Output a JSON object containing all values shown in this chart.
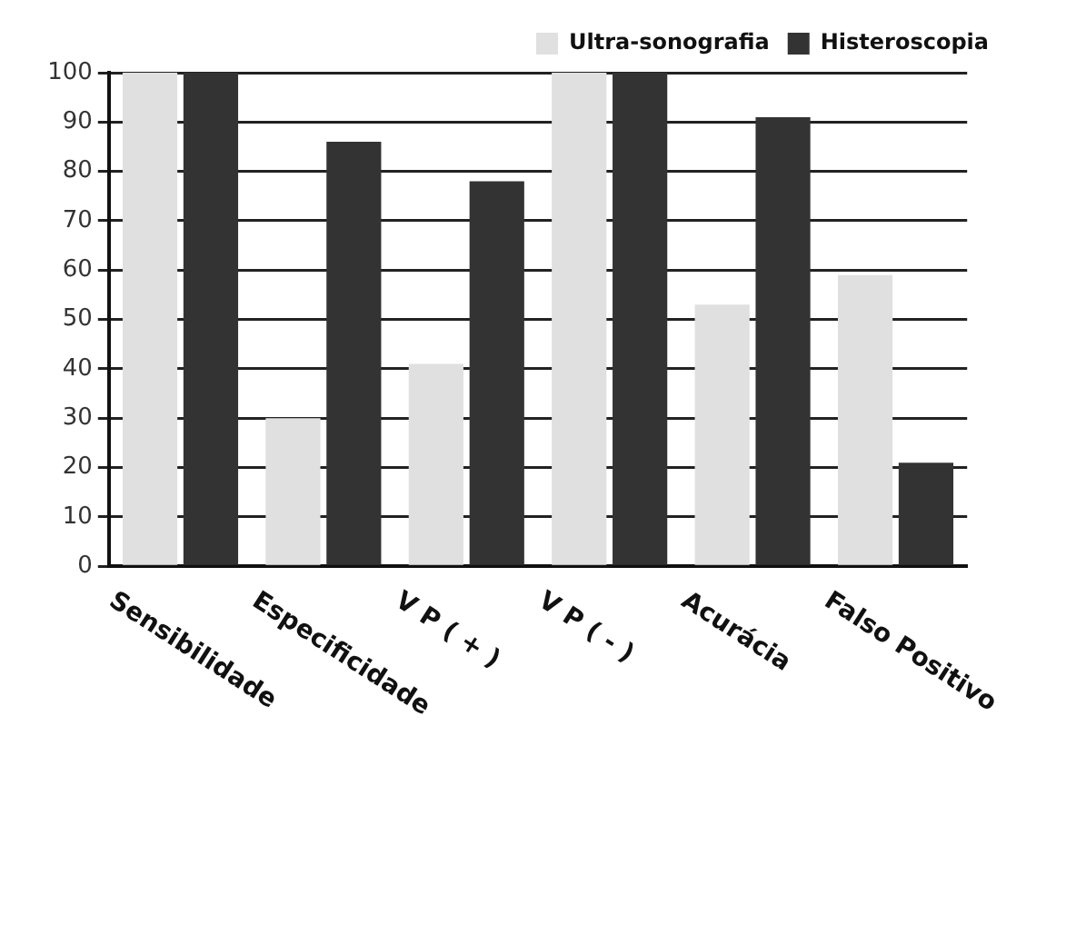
{
  "chart_data": {
    "type": "bar",
    "categories": [
      "Sensibilidade",
      "Especificidade",
      "V P ( + )",
      "V P ( - )",
      "Acurácia",
      "Falso Positivo"
    ],
    "series": [
      {
        "name": "Ultra-sonografia",
        "color": "#e0e0e0",
        "values": [
          100,
          30,
          41,
          100,
          53,
          59
        ]
      },
      {
        "name": "Histeroscopia",
        "color": "#333333",
        "values": [
          100,
          86,
          78,
          100,
          91,
          21
        ]
      }
    ],
    "ylim": [
      0,
      100
    ],
    "yticks": [
      0,
      10,
      20,
      30,
      40,
      50,
      60,
      70,
      80,
      90,
      100
    ],
    "grid": "y",
    "legend": "top right"
  }
}
